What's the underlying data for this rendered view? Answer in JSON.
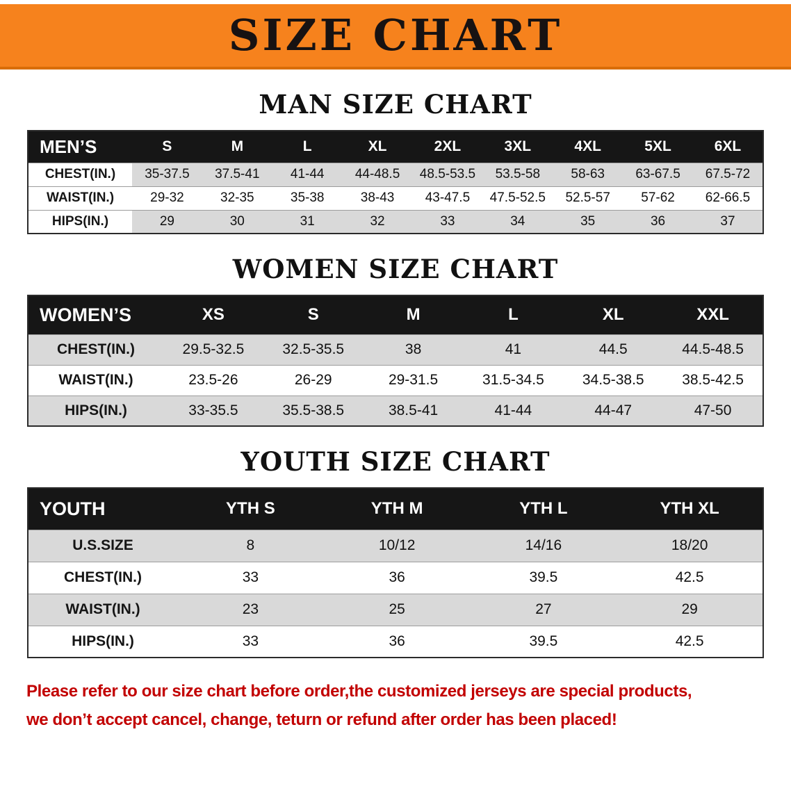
{
  "banner": {
    "title": "SIZE CHART"
  },
  "men": {
    "heading": "MAN SIZE CHART",
    "table": {
      "corner": "MEN’S",
      "columns": [
        "S",
        "M",
        "L",
        "XL",
        "2XL",
        "3XL",
        "4XL",
        "5XL",
        "6XL"
      ],
      "rows": [
        {
          "label": "CHEST(IN.)",
          "values": [
            "35-37.5",
            "37.5-41",
            "41-44",
            "44-48.5",
            "48.5-53.5",
            "53.5-58",
            "58-63",
            "63-67.5",
            "67.5-72"
          ]
        },
        {
          "label": "WAIST(IN.)",
          "values": [
            "29-32",
            "32-35",
            "35-38",
            "38-43",
            "43-47.5",
            "47.5-52.5",
            "52.5-57",
            "57-62",
            "62-66.5"
          ]
        },
        {
          "label": "HIPS(IN.)",
          "values": [
            "29",
            "30",
            "31",
            "32",
            "33",
            "34",
            "35",
            "36",
            "37"
          ]
        }
      ]
    }
  },
  "women": {
    "heading": "WOMEN SIZE CHART",
    "table": {
      "corner": "WOMEN’S",
      "columns": [
        "XS",
        "S",
        "M",
        "L",
        "XL",
        "XXL"
      ],
      "rows": [
        {
          "label": "CHEST(IN.)",
          "values": [
            "29.5-32.5",
            "32.5-35.5",
            "38",
            "41",
            "44.5",
            "44.5-48.5"
          ]
        },
        {
          "label": "WAIST(IN.)",
          "values": [
            "23.5-26",
            "26-29",
            "29-31.5",
            "31.5-34.5",
            "34.5-38.5",
            "38.5-42.5"
          ]
        },
        {
          "label": "HIPS(IN.)",
          "values": [
            "33-35.5",
            "35.5-38.5",
            "38.5-41",
            "41-44",
            "44-47",
            "47-50"
          ]
        }
      ]
    }
  },
  "youth": {
    "heading": "YOUTH SIZE CHART",
    "table": {
      "corner": "YOUTH",
      "columns": [
        "YTH S",
        "YTH M",
        "YTH L",
        "YTH XL"
      ],
      "rows": [
        {
          "label": "U.S.SIZE",
          "values": [
            "8",
            "10/12",
            "14/16",
            "18/20"
          ]
        },
        {
          "label": "CHEST(IN.)",
          "values": [
            "33",
            "36",
            "39.5",
            "42.5"
          ]
        },
        {
          "label": "WAIST(IN.)",
          "values": [
            "23",
            "25",
            "27",
            "29"
          ]
        },
        {
          "label": "HIPS(IN.)",
          "values": [
            "33",
            "36",
            "39.5",
            "42.5"
          ]
        }
      ]
    }
  },
  "disclaimer": {
    "line1": "Please refer to our size chart before order,the customized jerseys are special products,",
    "line2": "we don’t accept cancel, change, teturn or refund after order has been placed!"
  },
  "colors": {
    "page_bg": "#ffffff",
    "banner_bg": "#f6821d",
    "banner_text": "#171212",
    "header_bg": "#161616",
    "header_text": "#ffffff",
    "stripe": "#d9d9d9",
    "table_border": "#2b2b2b",
    "row_line": "#9c9c9c",
    "disclaimer_red": "#c20000"
  }
}
